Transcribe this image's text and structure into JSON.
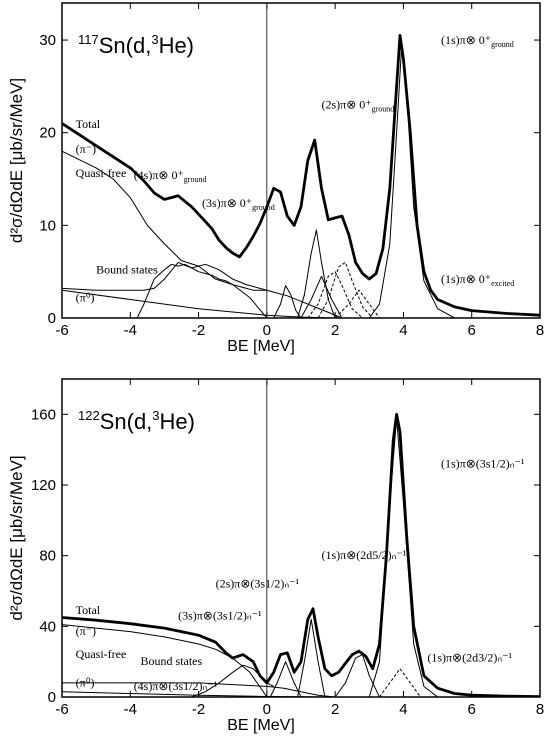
{
  "chart_data": [
    {
      "type": "line",
      "title": "117Sn(d,3He)",
      "title_mass": "117",
      "title_rest": "Sn(d,",
      "title_he_mass": "3",
      "title_he": "He)",
      "xlabel": "BE [MeV]",
      "ylabel": "d²σ/dΩdE [μb/sr/MeV]",
      "xlim": [
        -6,
        8
      ],
      "ylim": [
        0,
        34
      ],
      "xticks": [
        -6,
        -4,
        -2,
        0,
        2,
        4,
        6,
        8
      ],
      "yticks": [
        0,
        10,
        20,
        30
      ],
      "series": [
        {
          "name": "Total",
          "style": "thick",
          "x": [
            -6,
            -5.5,
            -5,
            -4.5,
            -4,
            -3.6,
            -3.3,
            -3,
            -2.8,
            -2.6,
            -2.4,
            -2.2,
            -2,
            -1.8,
            -1.6,
            -1.4,
            -1.2,
            -1,
            -0.8,
            -0.6,
            -0.4,
            -0.2,
            0,
            0.2,
            0.4,
            0.6,
            0.8,
            1,
            1.2,
            1.4,
            1.6,
            1.8,
            2,
            2.2,
            2.4,
            2.6,
            2.8,
            3,
            3.2,
            3.4,
            3.6,
            3.8,
            3.9,
            4,
            4.2,
            4.4,
            4.6,
            4.8,
            5,
            5.5,
            6,
            7,
            8
          ],
          "y": [
            21,
            19.8,
            18.6,
            17.4,
            16.2,
            14.8,
            13.5,
            12.8,
            13.0,
            13.2,
            12.6,
            12.0,
            11.2,
            10.4,
            9.6,
            8.4,
            7.6,
            7.0,
            6.6,
            7.6,
            8.8,
            10.2,
            12.0,
            14.0,
            13.6,
            11.0,
            10.0,
            12.0,
            17.0,
            19.2,
            14.0,
            10.6,
            10.8,
            11.0,
            9.0,
            6.0,
            4.8,
            4.2,
            4.8,
            7.5,
            14,
            25,
            30.5,
            28,
            20,
            10,
            5,
            3,
            2,
            1.2,
            0.8,
            0.5,
            0.3
          ]
        },
        {
          "name": "(π⁻)",
          "style": "thin",
          "x": [
            -6,
            -5,
            -4.5,
            -4,
            -3.5,
            -3,
            -2.5,
            -2,
            -1.5,
            -1,
            -0.5,
            0
          ],
          "y": [
            18,
            16.2,
            15.0,
            13.0,
            10.0,
            8.0,
            6.2,
            5.6,
            4.2,
            3.6,
            2.2,
            0
          ]
        },
        {
          "name": "Quasi-free",
          "style": "thin",
          "x": [
            -6,
            -5,
            -4,
            -3.6,
            -3.3,
            -3,
            -2.6,
            -2.2,
            -1.8,
            -1.4,
            -1,
            -0.6,
            -0.2,
            0.2,
            0.6,
            1,
            1.4,
            1.8,
            2.2
          ],
          "y": [
            3.2,
            3.0,
            3.0,
            3.0,
            3.2,
            4.2,
            6.0,
            5.4,
            5.8,
            5.2,
            4.2,
            3.6,
            3.2,
            2.8,
            2.4,
            1.8,
            1.2,
            0.6,
            0
          ]
        },
        {
          "name": "Bound states",
          "style": "thin",
          "x": [
            -3.8,
            -3.6,
            -3.3,
            -3,
            -2.8,
            -2.6,
            -2.4,
            -2.2,
            -2,
            -1.8,
            -1.6,
            -1.4,
            -1.2,
            -1,
            -0.8,
            -0.6,
            -0.4,
            -0.2,
            0
          ],
          "y": [
            0,
            1.5,
            4.2,
            5.2,
            5.8,
            5.6,
            5.8,
            5.4,
            5.0,
            4.8,
            4.6,
            4.2,
            4.0,
            3.6,
            3.4,
            3.2,
            3.0,
            3.0,
            3.0
          ]
        },
        {
          "name": "(π⁰)",
          "style": "thin",
          "x": [
            -6,
            -4,
            -2,
            0,
            1,
            2
          ],
          "y": [
            3.0,
            2.0,
            1.0,
            0.3,
            0.1,
            0
          ]
        },
        {
          "name": "(3s)",
          "style": "thin",
          "x": [
            0.2,
            0.4,
            0.55,
            0.7,
            0.85,
            1.0
          ],
          "y": [
            0,
            1.5,
            3.5,
            2.5,
            0.8,
            0
          ]
        },
        {
          "name": "(2s)",
          "style": "thin",
          "x": [
            0.9,
            1.1,
            1.3,
            1.45,
            1.6,
            1.8,
            2.0
          ],
          "y": [
            0,
            2.5,
            7,
            9.5,
            6,
            2,
            0
          ]
        },
        {
          "name": "(2s) excited",
          "style": "thin",
          "x": [
            1.0,
            1.3,
            1.6,
            1.9,
            2.2
          ],
          "y": [
            0,
            2,
            4.5,
            2,
            0
          ]
        },
        {
          "name": "(1s) ground",
          "style": "thin",
          "x": [
            3.0,
            3.3,
            3.6,
            3.8,
            3.95,
            4.1,
            4.3,
            4.6,
            5.0,
            5.5
          ],
          "y": [
            0,
            1.5,
            8,
            20,
            29.5,
            24,
            12,
            4,
            1,
            0
          ]
        },
        {
          "name": "(1s) excited a",
          "style": "dashed",
          "x": [
            1.2,
            1.5,
            1.8,
            2.0,
            2.2,
            2.5,
            2.8
          ],
          "y": [
            0,
            1.5,
            4.5,
            5.0,
            3.5,
            1.0,
            0
          ]
        },
        {
          "name": "(1s) excited b",
          "style": "dashed",
          "x": [
            1.5,
            1.8,
            2.1,
            2.3,
            2.5,
            2.8,
            3.1
          ],
          "y": [
            0,
            2.0,
            5.5,
            6.0,
            4.0,
            1.2,
            0
          ]
        },
        {
          "name": "(1s) excited c",
          "style": "dashed",
          "x": [
            2.0,
            2.4,
            2.7,
            3.0,
            3.3
          ],
          "y": [
            0,
            1.5,
            3.0,
            1.5,
            0
          ]
        }
      ],
      "annotations": [
        {
          "text": "Total",
          "x": -5.6,
          "y": 20.5
        },
        {
          "text": "(π⁻)",
          "x": -5.6,
          "y": 17.8
        },
        {
          "text": "Quasi-free",
          "x": -5.6,
          "y": 15.2
        },
        {
          "text": "Bound states",
          "x": -5.0,
          "y": 4.8
        },
        {
          "text": "(π⁰)",
          "x": -5.6,
          "y": 1.8
        },
        {
          "text": "(4s)π⊗ 0⁺",
          "sub": "ground",
          "x": -3.9,
          "y": 15.0
        },
        {
          "text": "(3s)π⊗ 0⁺",
          "sub": "ground",
          "x": -1.9,
          "y": 12.0
        },
        {
          "text": "(2s)π⊗ 0⁺",
          "sub": "ground",
          "x": 1.6,
          "y": 22.6
        },
        {
          "text": "(1s)π⊗ 0⁺",
          "sub": "ground",
          "x": 5.1,
          "y": 29.6
        },
        {
          "text": "(1s)π⊗ 0⁺",
          "sub": "excited",
          "x": 5.1,
          "y": 3.8
        }
      ]
    },
    {
      "type": "line",
      "title": "122Sn(d,3He)",
      "title_mass": "122",
      "title_rest": "Sn(d,",
      "title_he_mass": "3",
      "title_he": "He)",
      "xlabel": "BE [MeV]",
      "ylabel": "d²σ/dΩdE [μb/sr/MeV]",
      "xlim": [
        -6,
        8
      ],
      "ylim": [
        0,
        180
      ],
      "xticks": [
        -6,
        -4,
        -2,
        0,
        2,
        4,
        6,
        8
      ],
      "yticks": [
        0,
        40,
        80,
        120,
        160
      ],
      "series": [
        {
          "name": "Total",
          "style": "thick",
          "x": [
            -6,
            -5,
            -4,
            -3,
            -2,
            -1.5,
            -1.2,
            -1.0,
            -0.7,
            -0.4,
            -0.2,
            0,
            0.2,
            0.4,
            0.6,
            0.8,
            1.0,
            1.2,
            1.35,
            1.5,
            1.7,
            1.9,
            2.1,
            2.3,
            2.5,
            2.7,
            2.9,
            3.1,
            3.3,
            3.5,
            3.7,
            3.8,
            3.9,
            4.1,
            4.3,
            4.6,
            5.0,
            5.5,
            6,
            7,
            8
          ],
          "y": [
            45,
            43.5,
            41.5,
            39,
            35,
            31,
            25,
            22,
            24,
            20,
            12,
            8,
            14,
            24,
            25,
            14,
            20,
            44,
            50,
            34,
            16,
            12,
            14,
            19,
            24,
            26,
            23,
            16,
            30,
            80,
            145,
            160,
            150,
            90,
            40,
            12,
            5,
            2,
            1,
            0.5,
            0.2
          ]
        },
        {
          "name": "(π⁻)",
          "style": "thin",
          "x": [
            -6,
            -5,
            -4,
            -3,
            -2,
            -1.5,
            -1,
            -0.5,
            0
          ],
          "y": [
            41,
            39,
            37,
            34,
            30,
            27,
            22,
            14,
            0
          ]
        },
        {
          "name": "Quasi-free",
          "style": "thin",
          "x": [
            -6,
            -4,
            -2,
            -1,
            0,
            0.5,
            1,
            1.5,
            2
          ],
          "y": [
            8,
            8,
            8,
            7,
            6,
            5,
            3,
            1,
            0
          ]
        },
        {
          "name": "Bound states",
          "style": "thin",
          "x": [
            -2.2,
            -1.8,
            -1.4,
            -1.0,
            -0.7,
            -0.4,
            -0.2,
            0,
            0.2
          ],
          "y": [
            0,
            3,
            8,
            14,
            18,
            16,
            12,
            8,
            6
          ]
        },
        {
          "name": "(π⁰)",
          "style": "thin",
          "x": [
            -6,
            -4,
            -2,
            0,
            1,
            2
          ],
          "y": [
            3.0,
            2.0,
            1.0,
            0.3,
            0.1,
            0
          ]
        },
        {
          "name": "(3s) peak",
          "style": "thin",
          "x": [
            0.1,
            0.3,
            0.55,
            0.8,
            1.0
          ],
          "y": [
            0,
            8,
            20,
            8,
            0
          ]
        },
        {
          "name": "(2s) peak",
          "style": "thin",
          "x": [
            0.9,
            1.1,
            1.3,
            1.5,
            1.7
          ],
          "y": [
            0,
            20,
            44,
            20,
            0
          ]
        },
        {
          "name": "(1s) 2d5/2 peak",
          "style": "thin",
          "x": [
            2.0,
            2.3,
            2.6,
            2.8,
            3.0,
            3.3
          ],
          "y": [
            0,
            8,
            22,
            24,
            12,
            0
          ]
        },
        {
          "name": "(1s) 3s1/2 peak",
          "style": "thin",
          "x": [
            3.0,
            3.3,
            3.6,
            3.8,
            4.0,
            4.3,
            4.6,
            5.0
          ],
          "y": [
            0,
            20,
            110,
            158,
            110,
            30,
            6,
            0
          ]
        },
        {
          "name": "(1s) 2d3/2 dashed",
          "style": "dashed",
          "x": [
            3.3,
            3.6,
            3.9,
            4.2,
            4.5
          ],
          "y": [
            0,
            8,
            16,
            8,
            0
          ]
        }
      ],
      "annotations": [
        {
          "text": "Total",
          "x": -5.6,
          "y": 47
        },
        {
          "text": "(π⁻)",
          "x": -5.6,
          "y": 35
        },
        {
          "text": "Quasi-free",
          "x": -5.6,
          "y": 22
        },
        {
          "text": "Bound states",
          "x": -3.7,
          "y": 18
        },
        {
          "text": "(π⁰)",
          "x": -5.6,
          "y": 6
        },
        {
          "text": "(4s)π⊗(3s1/2)ₙ⁻¹",
          "x": -3.9,
          "y": 4
        },
        {
          "text": "(3s)π⊗(3s1/2)ₙ⁻¹",
          "x": -2.6,
          "y": 44
        },
        {
          "text": "(2s)π⊗(3s1/2)ₙ⁻¹",
          "x": -1.5,
          "y": 62
        },
        {
          "text": "(1s)π⊗(2d5/2)ₙ⁻¹",
          "x": 1.6,
          "y": 78
        },
        {
          "text": "(1s)π⊗(3s1/2)ₙ⁻¹",
          "x": 5.1,
          "y": 130
        },
        {
          "text": "(1s)π⊗(2d3/2)ₙ⁻¹",
          "x": 4.7,
          "y": 20
        }
      ]
    }
  ]
}
